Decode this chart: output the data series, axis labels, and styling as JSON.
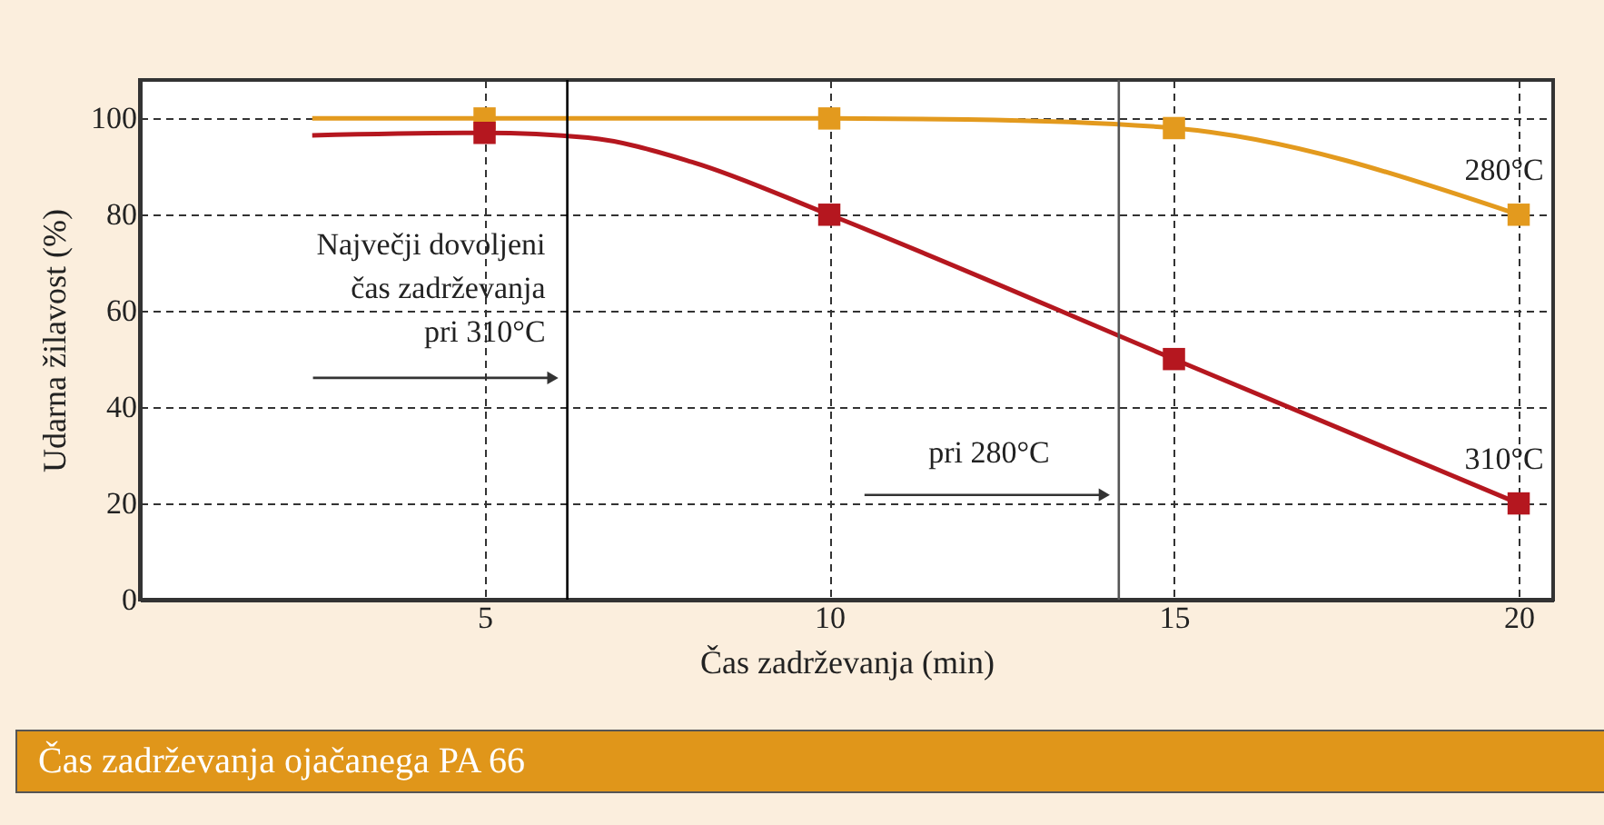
{
  "chart_data": {
    "type": "line",
    "title": "Čas zadrževanja ojačanega PA 66",
    "xlabel": "Čas zadrževanja (min)",
    "ylabel": "Udarna žilavost (%)",
    "xlim": [
      0,
      20.5
    ],
    "ylim": [
      0,
      108
    ],
    "xticks": [
      5,
      10,
      15,
      20
    ],
    "yticks": [
      0,
      20,
      40,
      60,
      80,
      100
    ],
    "grid": true,
    "series": [
      {
        "name": "280°C",
        "color": "#e39a1e",
        "x": [
          2.5,
          5,
          10,
          12,
          15,
          20
        ],
        "values": [
          100,
          100,
          100,
          99.8,
          98,
          80
        ]
      },
      {
        "name": "310°C",
        "color": "#b5171f",
        "x": [
          2.5,
          5,
          6.5,
          8,
          10,
          15,
          20
        ],
        "values": [
          96.5,
          97,
          96,
          91,
          80,
          50,
          20
        ]
      },
      {
        "type": "scatter",
        "marker": "square",
        "color": "#e39a1e",
        "x": [
          5,
          10,
          15,
          20
        ],
        "values": [
          100,
          100,
          98,
          80
        ]
      },
      {
        "type": "scatter",
        "marker": "square",
        "color": "#b5171f",
        "x": [
          5,
          10,
          15,
          20
        ],
        "values": [
          97,
          80,
          50,
          20
        ]
      }
    ],
    "ref_lines": [
      {
        "axis": "x",
        "value": 6.2,
        "color": "#000000",
        "label": "Največji dovoljeni\nčas zadrževanja\npri 310°C"
      },
      {
        "axis": "x",
        "value": 14.2,
        "color": "#555555",
        "label": "pri 280°C"
      }
    ]
  }
}
